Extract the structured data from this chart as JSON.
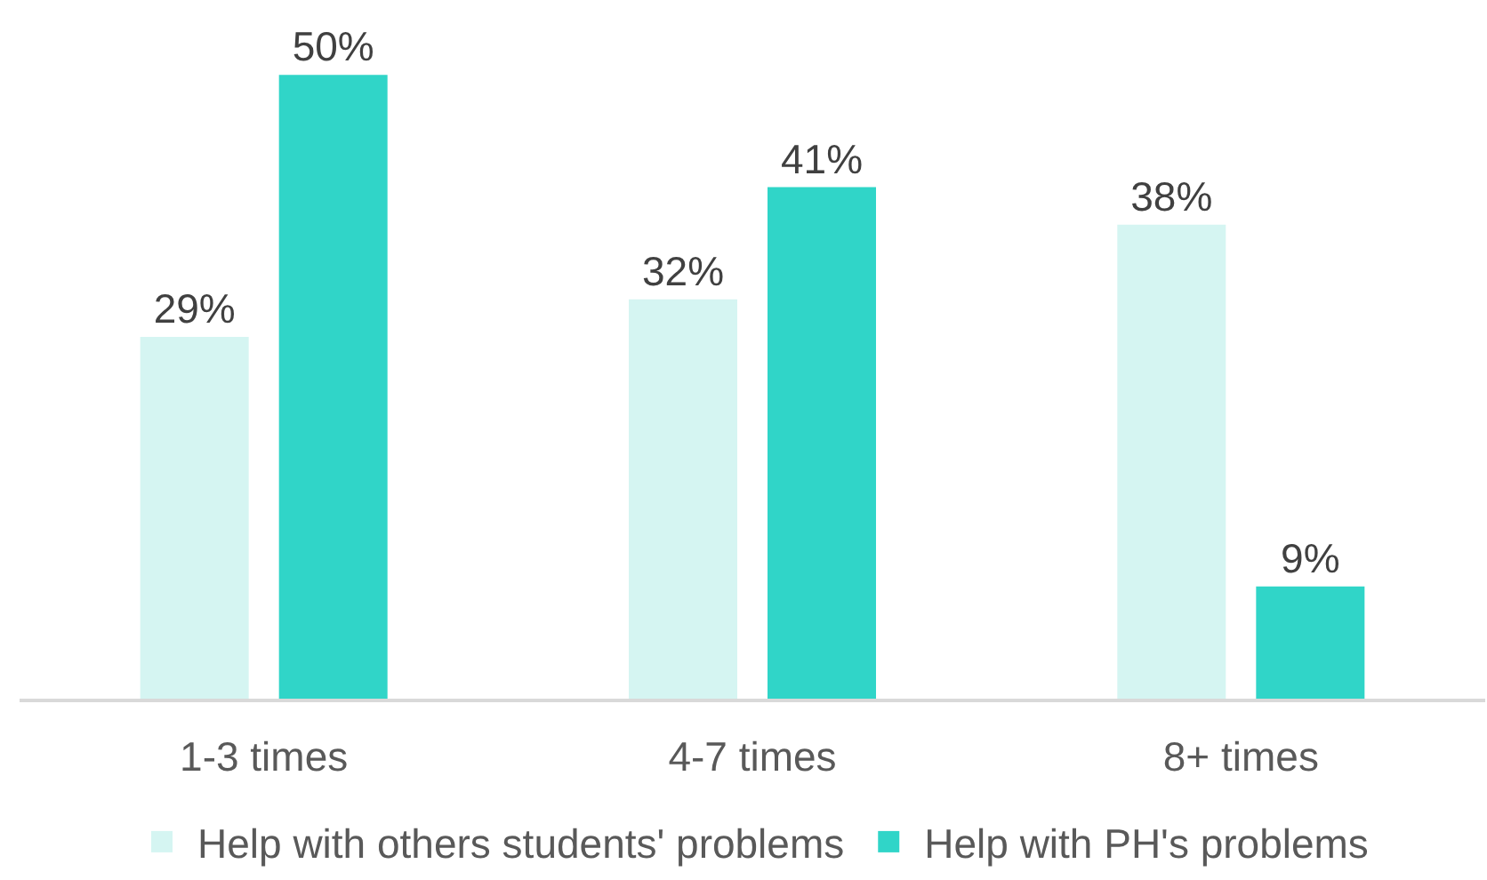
{
  "chart_data": {
    "type": "bar",
    "categories": [
      "1-3 times",
      "4-7 times",
      "8+ times"
    ],
    "series": [
      {
        "name": "Help with others students' problems",
        "color": "#d5f5f2",
        "values": [
          29,
          32,
          38
        ],
        "value_labels": [
          "29%",
          "32%",
          "38%"
        ]
      },
      {
        "name": "Help with PH's problems",
        "color": "#30d5c8",
        "values": [
          50,
          41,
          9
        ],
        "value_labels": [
          "50%",
          "41%",
          "9%"
        ]
      }
    ],
    "legend": "bottom"
  }
}
